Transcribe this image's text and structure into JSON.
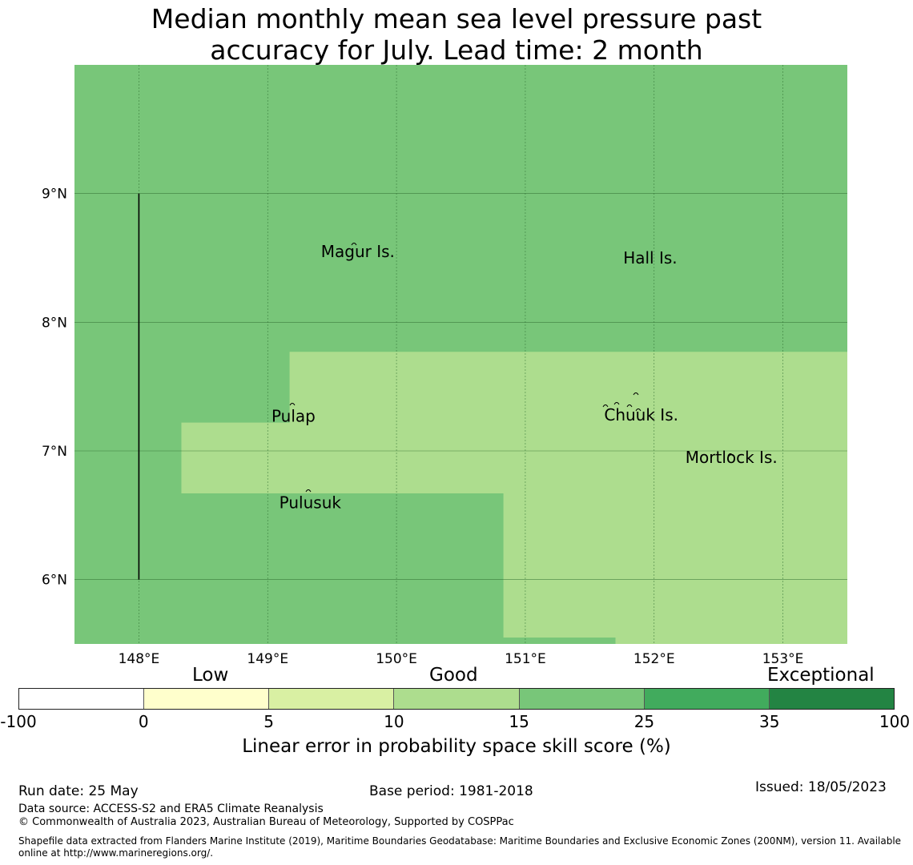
{
  "title": {
    "line1": "Median monthly mean sea level pressure past",
    "line2": "accuracy for July. Lead time: 2 month"
  },
  "map": {
    "lon_range": [
      147.5,
      153.5
    ],
    "lat_range": [
      5.5,
      10.0
    ],
    "lon_ticks": [
      {
        "value": 148,
        "label": "148°E"
      },
      {
        "value": 149,
        "label": "149°E"
      },
      {
        "value": 150,
        "label": "150°E"
      },
      {
        "value": 151,
        "label": "151°E"
      },
      {
        "value": 152,
        "label": "152°E"
      },
      {
        "value": 153,
        "label": "153°E"
      }
    ],
    "lat_ticks": [
      {
        "value": 9,
        "label": "9°N"
      },
      {
        "value": 8,
        "label": "8°N"
      },
      {
        "value": 7,
        "label": "7°N"
      },
      {
        "value": 6,
        "label": "6°N"
      }
    ],
    "background_color": "#78c679",
    "regions": [
      {
        "name": "skill-10-15",
        "color": "#addd8e",
        "polygon": [
          [
            149.17,
            7.77
          ],
          [
            153.5,
            7.77
          ],
          [
            153.5,
            5.5
          ],
          [
            151.7,
            5.5
          ],
          [
            151.7,
            5.55
          ],
          [
            150.83,
            5.55
          ],
          [
            150.83,
            6.67
          ],
          [
            148.33,
            6.67
          ],
          [
            148.33,
            7.22
          ],
          [
            149.17,
            7.22
          ]
        ]
      }
    ],
    "boundary_line": {
      "lon": 148.0,
      "lat_from": 6.0,
      "lat_to": 9.0
    },
    "places": [
      {
        "name": "Magur Is.",
        "lon": 149.7,
        "lat": 8.55
      },
      {
        "name": "Hall Is.",
        "lon": 151.97,
        "lat": 8.5
      },
      {
        "name": "Pulap",
        "lon": 149.2,
        "lat": 7.27
      },
      {
        "name": "Chuuk Is.",
        "lon": 151.9,
        "lat": 7.28
      },
      {
        "name": "Mortlock Is.",
        "lon": 152.6,
        "lat": 6.95
      },
      {
        "name": "Pulusuk",
        "lon": 149.33,
        "lat": 6.6
      }
    ]
  },
  "legend": {
    "category_labels": {
      "low": "Low",
      "good": "Good",
      "exceptional": "Exceptional"
    },
    "bins": [
      {
        "color": "#ffffff"
      },
      {
        "color": "#ffffcc"
      },
      {
        "color": "#d9f0a3"
      },
      {
        "color": "#addd8e"
      },
      {
        "color": "#78c679"
      },
      {
        "color": "#41ab5d"
      },
      {
        "color": "#238443"
      }
    ],
    "ticks": [
      "-100",
      "0",
      "5",
      "10",
      "15",
      "25",
      "35",
      "100"
    ],
    "label": "Linear error in probability space skill score (%)"
  },
  "footer": {
    "run_date": "Run date: 25 May",
    "base_period": "Base period: 1981-2018",
    "issued": "Issued: 18/05/2023",
    "data_source": "Data source: ACCESS-S2 and ERA5 Climate Reanalysis",
    "copyright": "© Commonwealth of Australia 2023, Australian Bureau of Meteorology, Supported by COSPPac",
    "shapefile_note": "Shapefile data extracted from Flanders Marine Institute (2019), Maritime Boundaries Geodatabase: Maritime Boundaries and Exclusive Economic Zones (200NM), version 11. Available online at http://www.marineregions.org/."
  }
}
